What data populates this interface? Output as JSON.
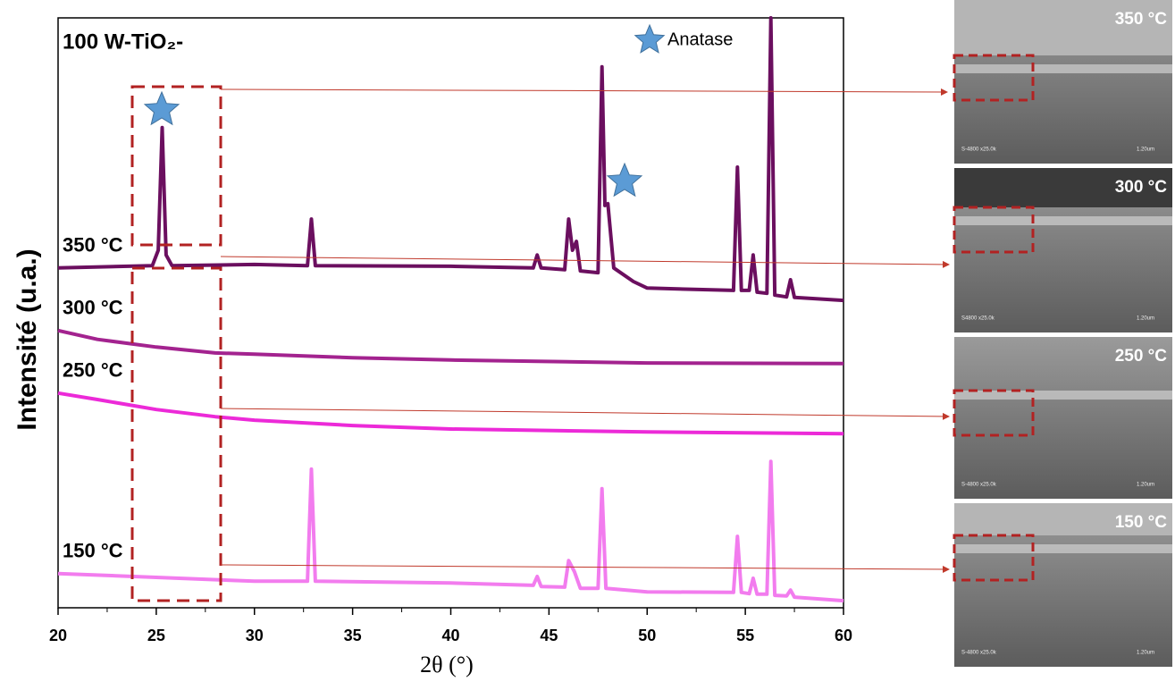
{
  "chart_data": {
    "type": "line",
    "title": "100 W-TiO₂-",
    "x_label": "2θ (°)",
    "y_label": "Intensité (u.a.)",
    "legend_label": "Anatase",
    "xlim": [
      20,
      60
    ],
    "xticks": [
      20,
      25,
      30,
      35,
      40,
      45,
      50,
      55,
      60
    ],
    "ylim": [
      0,
      100
    ],
    "series": [
      {
        "name": "350 °C",
        "color": "#6b0f5f",
        "x": [
          20,
          24.8,
          25.1,
          25.3,
          25.5,
          25.8,
          30,
          32.7,
          32.9,
          33.1,
          40,
          44.2,
          44.4,
          44.6,
          45.8,
          46.0,
          46.2,
          46.4,
          46.6,
          47.5,
          47.7,
          47.85,
          48.0,
          48.3,
          49.3,
          50,
          54.4,
          54.6,
          54.8,
          55.2,
          55.4,
          55.6,
          56.1,
          56.3,
          56.5,
          57.1,
          57.3,
          57.5,
          60
        ],
        "values": [
          57.6,
          58.0,
          60.6,
          81.4,
          59.8,
          58.0,
          58.2,
          58.0,
          65.9,
          58.0,
          57.9,
          57.6,
          59.8,
          57.6,
          57.3,
          65.9,
          60.6,
          62.1,
          57.1,
          56.8,
          91.7,
          68.2,
          68.5,
          57.6,
          55.3,
          54.2,
          53.8,
          74.7,
          53.8,
          53.8,
          59.8,
          53.5,
          53.3,
          100,
          53.0,
          52.7,
          55.6,
          52.6,
          52.1
        ]
      },
      {
        "name": "300 °C",
        "color": "#a3238f",
        "x": [
          20,
          22,
          25,
          28,
          30,
          35,
          40,
          50,
          60
        ],
        "values": [
          47.0,
          45.5,
          44.2,
          43.2,
          43.0,
          42.4,
          42.0,
          41.5,
          41.4
        ]
      },
      {
        "name": "250 °C",
        "color": "#ec2ad8",
        "x": [
          20,
          22,
          25,
          28,
          30,
          35,
          40,
          50,
          60
        ],
        "values": [
          36.4,
          35.3,
          33.6,
          32.4,
          31.8,
          30.9,
          30.3,
          29.8,
          29.5
        ]
      },
      {
        "name": "150 °C",
        "color": "#f27cee",
        "x": [
          20,
          30,
          32.7,
          32.9,
          33.1,
          40,
          44.2,
          44.4,
          44.6,
          45.8,
          46.0,
          46.3,
          46.6,
          47.5,
          47.7,
          47.9,
          50,
          54.4,
          54.6,
          54.8,
          55.2,
          55.4,
          55.6,
          56.1,
          56.3,
          56.5,
          57.1,
          57.3,
          57.5,
          60
        ],
        "values": [
          5.8,
          4.5,
          4.5,
          23.5,
          4.5,
          4.2,
          3.8,
          5.3,
          3.6,
          3.5,
          8.0,
          6.1,
          3.3,
          3.3,
          20.2,
          3.3,
          2.7,
          2.6,
          12.1,
          2.6,
          2.4,
          5.0,
          2.3,
          2.3,
          24.8,
          2.1,
          2.0,
          3.0,
          1.8,
          1.2
        ]
      }
    ]
  },
  "images": [
    {
      "label": "350 °C",
      "caption": "S-4800 x25.0k",
      "scale": "1.20um"
    },
    {
      "label": "300 °C",
      "caption": "S4800 x25.0k",
      "scale": "1.20um"
    },
    {
      "label": "250 °C",
      "caption": "S-4800 x25.0k",
      "scale": "1.20um"
    },
    {
      "label": "150 °C",
      "caption": "S-4800 x25.0k",
      "scale": "1.20um"
    }
  ]
}
